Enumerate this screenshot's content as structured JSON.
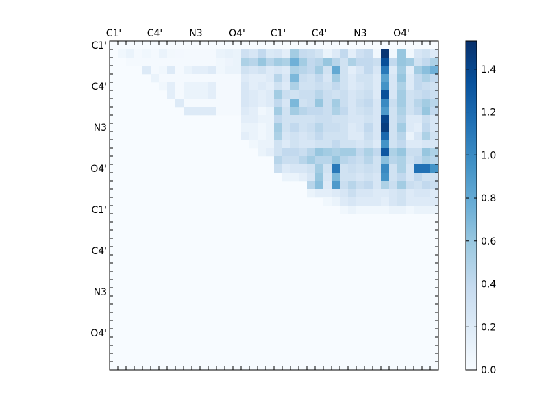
{
  "chart_data": {
    "type": "heatmap",
    "title": "",
    "xlabel": "",
    "ylabel": "",
    "x_tick_labels": [
      "C1'",
      "C4'",
      "N3",
      "O4'",
      "C1'",
      "C4'",
      "N3",
      "O4'"
    ],
    "y_tick_labels": [
      "C1'",
      "C4'",
      "N3",
      "O4'",
      "C1'",
      "C4'",
      "N3",
      "O4'"
    ],
    "colorbar": {
      "range": [
        0.0,
        1.53
      ],
      "ticks": [
        "0.0",
        "0.2",
        "0.4",
        "0.6",
        "0.8",
        "1.0",
        "1.2",
        "1.4"
      ],
      "colormap": "Blues",
      "colors": [
        "#f7fbff",
        "#deebf7",
        "#c6dbef",
        "#9ecae1",
        "#6baed6",
        "#4292c6",
        "#2171b5",
        "#08519c",
        "#08306b"
      ]
    },
    "grid": false,
    "matrix_size": 40,
    "upper_triangular": true,
    "rows": [
      [
        0,
        0,
        0,
        0,
        0,
        0,
        0,
        0,
        0,
        0,
        0,
        0,
        0,
        0,
        0,
        0,
        0,
        0,
        0,
        0,
        0,
        0,
        0,
        0,
        0,
        0,
        0,
        0,
        0,
        0,
        0,
        0,
        0,
        0,
        0,
        0,
        0,
        0,
        0,
        0
      ],
      [
        0,
        0.05,
        0.1,
        0.02,
        0.05,
        0.02,
        0.1,
        0.04,
        0.03,
        0.02,
        0.02,
        0.02,
        0.02,
        0.1,
        0.12,
        0.1,
        0.32,
        0.25,
        0.4,
        0.22,
        0.25,
        0.15,
        0.55,
        0.38,
        0.35,
        0.28,
        0.1,
        0.2,
        0.4,
        0.15,
        0.32,
        0.38,
        0.05,
        1.5,
        0.05,
        0.6,
        0.05,
        0.25,
        0.3,
        0.2
      ],
      [
        0,
        0,
        0.02,
        0.02,
        0.02,
        0.02,
        0.02,
        0.02,
        0.02,
        0.02,
        0.02,
        0.02,
        0.02,
        0.05,
        0.08,
        0.1,
        0.5,
        0.45,
        0.6,
        0.45,
        0.55,
        0.5,
        0.75,
        0.55,
        0.4,
        0.45,
        0.6,
        0.45,
        0.3,
        0.5,
        0.4,
        0.4,
        0.35,
        1.35,
        0.4,
        0.6,
        0.55,
        0.3,
        0.4,
        0.5
      ],
      [
        0,
        0,
        0,
        0,
        0.2,
        0.02,
        0.05,
        0.2,
        0.02,
        0.1,
        0.15,
        0.15,
        0.2,
        0.05,
        0.1,
        0.1,
        0.3,
        0.25,
        0.3,
        0.2,
        0.25,
        0.2,
        0.5,
        0.45,
        0.4,
        0.55,
        0.3,
        0.8,
        0.3,
        0.15,
        0.25,
        0.4,
        0.25,
        1.1,
        0.2,
        0.55,
        0.15,
        0.55,
        0.65,
        0.75
      ],
      [
        0,
        0,
        0,
        0,
        0,
        0.1,
        0.02,
        0.02,
        0.02,
        0.02,
        0.02,
        0.02,
        0.02,
        0.02,
        0.02,
        0.02,
        0.2,
        0.15,
        0.15,
        0.2,
        0.45,
        0.25,
        0.7,
        0.35,
        0.3,
        0.4,
        0.25,
        0.55,
        0.3,
        0.2,
        0.3,
        0.3,
        0.2,
        0.85,
        0.25,
        0.6,
        0.2,
        0.4,
        0.5,
        0.4
      ],
      [
        0,
        0,
        0,
        0,
        0,
        0,
        0.05,
        0.15,
        0.02,
        0.1,
        0.1,
        0.1,
        0.15,
        0.02,
        0.02,
        0.02,
        0.25,
        0.15,
        0.2,
        0.15,
        0.3,
        0.2,
        0.5,
        0.3,
        0.3,
        0.35,
        0.3,
        0.4,
        0.3,
        0.2,
        0.25,
        0.3,
        0.2,
        0.95,
        0.25,
        0.5,
        0.2,
        0.4,
        0.35,
        0.3
      ],
      [
        0,
        0,
        0,
        0,
        0,
        0,
        0,
        0.15,
        0.02,
        0.1,
        0.1,
        0.1,
        0.15,
        0.02,
        0.02,
        0.02,
        0.25,
        0.2,
        0.15,
        0.2,
        0.55,
        0.35,
        0.3,
        0.35,
        0.35,
        0.45,
        0.35,
        0.3,
        0.35,
        0.25,
        0.3,
        0.35,
        0.2,
        1.35,
        0.25,
        0.55,
        0.3,
        0.35,
        0.4,
        0.35
      ],
      [
        0,
        0,
        0,
        0,
        0,
        0,
        0,
        0,
        0.2,
        0.02,
        0.02,
        0.02,
        0.02,
        0.02,
        0.02,
        0.02,
        0.25,
        0.2,
        0.15,
        0.2,
        0.4,
        0.25,
        0.7,
        0.3,
        0.35,
        0.6,
        0.35,
        0.55,
        0.35,
        0.25,
        0.35,
        0.4,
        0.25,
        1.0,
        0.35,
        0.55,
        0.3,
        0.45,
        0.55,
        0.45
      ],
      [
        0,
        0,
        0,
        0,
        0,
        0,
        0,
        0,
        0,
        0.2,
        0.2,
        0.2,
        0.2,
        0.02,
        0.02,
        0.02,
        0.2,
        0.15,
        0.05,
        0.1,
        0.55,
        0.3,
        0.55,
        0.45,
        0.4,
        0.4,
        0.35,
        0.5,
        0.4,
        0.25,
        0.3,
        0.35,
        0.25,
        0.9,
        0.3,
        0.5,
        0.3,
        0.4,
        0.6,
        0.4
      ],
      [
        0,
        0,
        0,
        0,
        0,
        0,
        0,
        0,
        0,
        0,
        0,
        0,
        0,
        0,
        0,
        0,
        0.15,
        0.15,
        0.1,
        0.1,
        0.4,
        0.3,
        0.3,
        0.3,
        0.3,
        0.35,
        0.35,
        0.3,
        0.3,
        0.25,
        0.25,
        0.3,
        0.25,
        1.4,
        0.3,
        0.45,
        0.2,
        0.2,
        0.35,
        0.25
      ],
      [
        0,
        0,
        0,
        0,
        0,
        0,
        0,
        0,
        0,
        0,
        0,
        0,
        0,
        0,
        0,
        0,
        0.1,
        0.1,
        0.05,
        0.1,
        0.55,
        0.3,
        0.4,
        0.3,
        0.35,
        0.45,
        0.35,
        0.35,
        0.3,
        0.2,
        0.25,
        0.4,
        0.25,
        1.45,
        0.3,
        0.55,
        0.2,
        0.15,
        0.4,
        0.25
      ],
      [
        0,
        0,
        0,
        0,
        0,
        0,
        0,
        0,
        0,
        0,
        0,
        0,
        0,
        0,
        0,
        0,
        0.15,
        0.1,
        0.05,
        0.1,
        0.5,
        0.25,
        0.3,
        0.25,
        0.3,
        0.4,
        0.3,
        0.3,
        0.3,
        0.2,
        0.2,
        0.35,
        0.25,
        1.2,
        0.3,
        0.45,
        0.1,
        0.25,
        0.5,
        0.3
      ],
      [
        0,
        0,
        0,
        0,
        0,
        0,
        0,
        0,
        0,
        0,
        0,
        0,
        0,
        0,
        0,
        0,
        0,
        0.05,
        0.1,
        0.1,
        0.3,
        0.2,
        0.3,
        0.25,
        0.25,
        0.3,
        0.3,
        0.4,
        0.3,
        0.3,
        0.25,
        0.3,
        0.2,
        0.95,
        0.3,
        0.4,
        0.2,
        0.2,
        0.25,
        0.25
      ],
      [
        0,
        0,
        0,
        0,
        0,
        0,
        0,
        0,
        0,
        0,
        0,
        0,
        0,
        0,
        0,
        0,
        0,
        0,
        0.1,
        0.15,
        0.3,
        0.4,
        0.4,
        0.35,
        0.45,
        0.6,
        0.55,
        0.5,
        0.55,
        0.55,
        0.4,
        0.5,
        0.4,
        1.3,
        0.5,
        0.6,
        0.35,
        0.35,
        0.6,
        0.5
      ],
      [
        0,
        0,
        0,
        0,
        0,
        0,
        0,
        0,
        0,
        0,
        0,
        0,
        0,
        0,
        0,
        0,
        0,
        0,
        0,
        0,
        0.45,
        0.35,
        0.35,
        0.45,
        0.55,
        0.45,
        0.45,
        0.6,
        0.45,
        0.4,
        0.35,
        0.45,
        0.3,
        0.65,
        0.45,
        0.5,
        0.3,
        0.4,
        0.5,
        0.45
      ],
      [
        0,
        0,
        0,
        0,
        0,
        0,
        0,
        0,
        0,
        0,
        0,
        0,
        0,
        0,
        0,
        0,
        0,
        0,
        0,
        0,
        0.35,
        0.2,
        0.25,
        0.25,
        0.3,
        0.55,
        0.3,
        1.1,
        0.3,
        0.35,
        0.3,
        0.35,
        0.3,
        1.0,
        0.3,
        0.5,
        0.25,
        1.15,
        1.15,
        0.95
      ],
      [
        0,
        0,
        0,
        0,
        0,
        0,
        0,
        0,
        0,
        0,
        0,
        0,
        0,
        0,
        0,
        0,
        0,
        0,
        0,
        0,
        0,
        0.1,
        0.1,
        0.15,
        0.25,
        0.6,
        0.25,
        0.7,
        0.3,
        0.3,
        0.25,
        0.3,
        0.25,
        0.95,
        0.3,
        0.4,
        0.25,
        0.4,
        0.3,
        0.3
      ],
      [
        0,
        0,
        0,
        0,
        0,
        0,
        0,
        0,
        0,
        0,
        0,
        0,
        0,
        0,
        0,
        0,
        0,
        0,
        0,
        0,
        0,
        0,
        0,
        0,
        0.45,
        0.65,
        0.2,
        0.9,
        0.35,
        0.45,
        0.35,
        0.4,
        0.25,
        0.5,
        0.35,
        0.55,
        0.35,
        0.3,
        0.4,
        0.35
      ],
      [
        0,
        0,
        0,
        0,
        0,
        0,
        0,
        0,
        0,
        0,
        0,
        0,
        0,
        0,
        0,
        0,
        0,
        0,
        0,
        0,
        0,
        0,
        0,
        0,
        0.1,
        0.15,
        0.15,
        0.2,
        0.25,
        0.35,
        0.25,
        0.25,
        0.2,
        0.2,
        0.25,
        0.3,
        0.2,
        0.25,
        0.25,
        0.2
      ],
      [
        0,
        0,
        0,
        0,
        0,
        0,
        0,
        0,
        0,
        0,
        0,
        0,
        0,
        0,
        0,
        0,
        0,
        0,
        0,
        0,
        0,
        0,
        0,
        0,
        0,
        0,
        0.05,
        0.1,
        0.2,
        0.25,
        0.2,
        0.2,
        0.2,
        0.15,
        0.25,
        0.3,
        0.2,
        0.2,
        0.2,
        0.2
      ],
      [
        0,
        0,
        0,
        0,
        0,
        0,
        0,
        0,
        0,
        0,
        0,
        0,
        0,
        0,
        0,
        0,
        0,
        0,
        0,
        0,
        0,
        0,
        0,
        0,
        0,
        0,
        0,
        0,
        0.05,
        0.1,
        0.05,
        0.05,
        0.05,
        0.05,
        0.1,
        0.1,
        0.05,
        0.1,
        0.1,
        0.1
      ],
      [
        0,
        0,
        0,
        0,
        0,
        0,
        0,
        0,
        0,
        0,
        0,
        0,
        0,
        0,
        0,
        0,
        0,
        0,
        0,
        0,
        0,
        0,
        0,
        0,
        0,
        0,
        0,
        0,
        0,
        0,
        0,
        0,
        0,
        0,
        0,
        0,
        0,
        0,
        0,
        0
      ]
    ]
  }
}
